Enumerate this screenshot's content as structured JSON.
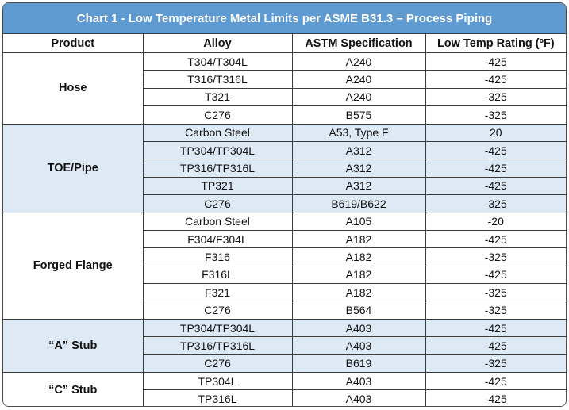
{
  "title": "Chart 1 - Low Temperature Metal Limits per ASME  B31.3 – Process Piping",
  "headers": [
    "Product",
    "Alloy",
    "ASTM Specification",
    "Low Temp Rating (ºF)"
  ],
  "groups": [
    {
      "product": "Hose",
      "shaded": false,
      "rows": [
        {
          "alloy": "T304/T304L",
          "spec": "A240",
          "rating": "-425"
        },
        {
          "alloy": "T316/T316L",
          "spec": "A240",
          "rating": "-425"
        },
        {
          "alloy": "T321",
          "spec": "A240",
          "rating": "-325"
        },
        {
          "alloy": "C276",
          "spec": "B575",
          "rating": "-325"
        }
      ]
    },
    {
      "product": "TOE/Pipe",
      "shaded": true,
      "rows": [
        {
          "alloy": "Carbon Steel",
          "spec": "A53, Type F",
          "rating": "20"
        },
        {
          "alloy": "TP304/TP304L",
          "spec": "A312",
          "rating": "-425"
        },
        {
          "alloy": "TP316/TP316L",
          "spec": "A312",
          "rating": "-425"
        },
        {
          "alloy": "TP321",
          "spec": "A312",
          "rating": "-425"
        },
        {
          "alloy": "C276",
          "spec": "B619/B622",
          "rating": "-325"
        }
      ]
    },
    {
      "product": "Forged Flange",
      "shaded": false,
      "rows": [
        {
          "alloy": "Carbon Steel",
          "spec": "A105",
          "rating": "-20"
        },
        {
          "alloy": "F304/F304L",
          "spec": "A182",
          "rating": "-425"
        },
        {
          "alloy": "F316",
          "spec": "A182",
          "rating": "-325"
        },
        {
          "alloy": "F316L",
          "spec": "A182",
          "rating": "-425"
        },
        {
          "alloy": "F321",
          "spec": "A182",
          "rating": "-325"
        },
        {
          "alloy": "C276",
          "spec": "B564",
          "rating": "-325"
        }
      ]
    },
    {
      "product": "“A” Stub",
      "shaded": true,
      "rows": [
        {
          "alloy": "TP304/TP304L",
          "spec": "A403",
          "rating": "-425"
        },
        {
          "alloy": "TP316/TP316L",
          "spec": "A403",
          "rating": "-425"
        },
        {
          "alloy": "C276",
          "spec": "B619",
          "rating": "-325"
        }
      ]
    },
    {
      "product": "“C” Stub",
      "shaded": false,
      "rows": [
        {
          "alloy": "TP304L",
          "spec": "A403",
          "rating": "-425"
        },
        {
          "alloy": "TP316L",
          "spec": "A403",
          "rating": "-425"
        }
      ]
    }
  ],
  "colors": {
    "title_bg": "#5f9bd0",
    "shaded_row_bg": "#dde9f5",
    "border": "#3c3c3c"
  }
}
